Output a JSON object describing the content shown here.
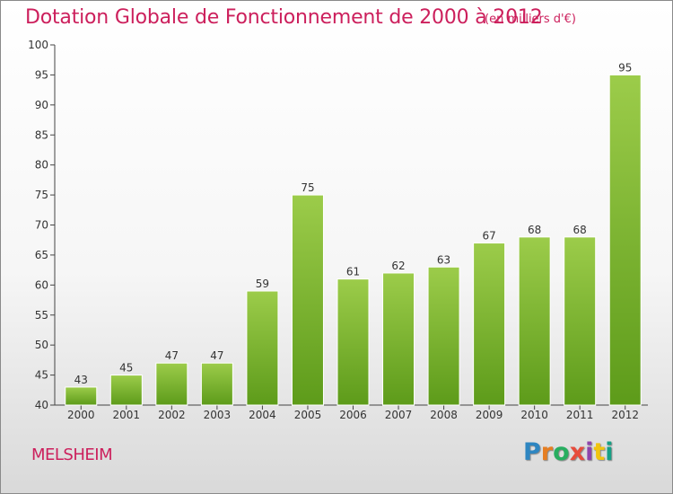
{
  "title": "Dotation Globale de Fonctionnement de 2000 à 2012",
  "unit_note": "(en milliers d'€)",
  "commune": "MELSHEIM",
  "logo": {
    "letters": [
      "P",
      "r",
      "o",
      "x",
      "i",
      "t",
      "i"
    ],
    "colors": [
      "#2e86c1",
      "#e67e22",
      "#27ae60",
      "#e74c3c",
      "#8e44ad",
      "#f1c40f",
      "#16a085"
    ]
  },
  "chart_data": {
    "type": "bar",
    "categories": [
      "2000",
      "2001",
      "2002",
      "2003",
      "2004",
      "2005",
      "2006",
      "2007",
      "2008",
      "2009",
      "2010",
      "2011",
      "2012"
    ],
    "values": [
      43,
      45,
      47,
      47,
      59,
      75,
      61,
      62,
      63,
      67,
      68,
      68,
      95
    ],
    "title": "Dotation Globale de Fonctionnement de 2000 à 2012",
    "xlabel": "",
    "ylabel": "",
    "ylim": [
      40,
      100
    ],
    "yticks": [
      40,
      45,
      50,
      55,
      60,
      65,
      70,
      75,
      80,
      85,
      90,
      95,
      100
    ],
    "grid": false,
    "bar_color_top": "#9ccc4a",
    "bar_color_bottom": "#5d9b1a"
  }
}
